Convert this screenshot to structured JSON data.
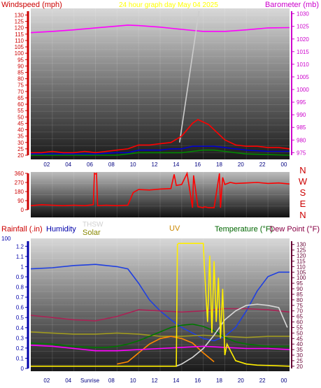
{
  "chart_data": [
    {
      "type": "line",
      "title": "24 hour graph day   May 04 2025",
      "title_color": "#ffff00",
      "left_axis_label": "Windspeed (mph)",
      "left_axis_color": "#cc0000",
      "right_axis_label": "Barometer (mb)",
      "right_axis_color": "#cc00cc",
      "x_ticks": [
        "02",
        "04",
        "06",
        "08",
        "10",
        "12",
        "14",
        "16",
        "18",
        "20",
        "22",
        "00"
      ],
      "x_range": [
        0,
        24
      ],
      "left_ticks": [
        20,
        25,
        30,
        35,
        40,
        45,
        50,
        55,
        60,
        65,
        70,
        75,
        80,
        85,
        90,
        95,
        100,
        105,
        110,
        115,
        120,
        125,
        130
      ],
      "left_ylim": [
        20,
        133
      ],
      "right_ticks": [
        975,
        980,
        985,
        990,
        995,
        1000,
        1005,
        1010,
        1015,
        1020,
        1025,
        1030
      ],
      "right_ylim": [
        974,
        1031
      ],
      "series": [
        {
          "axis": "right",
          "color": "#ff00ff",
          "x": [
            0,
            2,
            4,
            6,
            8,
            9,
            10,
            12,
            14,
            15,
            16,
            18,
            20,
            22,
            24
          ],
          "y": [
            1022.5,
            1023,
            1023.6,
            1024.4,
            1025.1,
            1025.5,
            1025.3,
            1024.7,
            1023.8,
            1023.4,
            1023,
            1023,
            1023.6,
            1024.4,
            1024.5
          ]
        },
        {
          "axis": "left",
          "color": "#cccccc",
          "x": [
            13.8,
            15.6
          ],
          "y": [
            30,
            134
          ]
        },
        {
          "axis": "left",
          "color": "#ff0000",
          "x": [
            0,
            1,
            2,
            3,
            4,
            5,
            6,
            7,
            8,
            9,
            10,
            11,
            12,
            13,
            14,
            15,
            15.5,
            16,
            16.5,
            17,
            18,
            19,
            20,
            21,
            22,
            23,
            24
          ],
          "y": [
            22,
            22,
            23,
            22,
            22,
            23,
            22,
            23,
            24,
            25,
            28,
            28,
            29,
            30,
            35,
            45,
            48,
            46,
            44,
            40,
            32,
            28,
            27,
            27,
            26,
            26,
            25
          ]
        },
        {
          "axis": "left",
          "color": "#0000cc",
          "x": [
            0,
            2,
            4,
            6,
            8,
            9,
            10,
            12,
            13,
            14,
            15,
            16,
            17,
            18,
            19,
            20,
            22,
            24
          ],
          "y": [
            21,
            21,
            21,
            21,
            22,
            22,
            24,
            24,
            25,
            25,
            27,
            27,
            27,
            26,
            25,
            24,
            23,
            23
          ]
        },
        {
          "axis": "left",
          "color": "#008800",
          "x": [
            0,
            8,
            9,
            10,
            12,
            13,
            14,
            15,
            16,
            17,
            18,
            19,
            20,
            24
          ],
          "y": [
            20,
            20,
            21,
            22,
            22,
            22,
            22,
            23,
            24,
            24,
            23,
            22,
            21,
            20
          ]
        }
      ]
    },
    {
      "type": "line",
      "left_ticks": [
        0,
        90,
        180,
        270,
        360
      ],
      "ylim": [
        0,
        360
      ],
      "right_letters": [
        "N",
        "W",
        "S",
        "E",
        "N"
      ],
      "right_letter_color": "#cc0000",
      "x_range": [
        0,
        24
      ],
      "series": [
        {
          "color": "#ff0000",
          "x": [
            0,
            1,
            2,
            3,
            4,
            5,
            5.8,
            5.9,
            6.0,
            6.1,
            6.2,
            7,
            8,
            9,
            9.5,
            10,
            11,
            12,
            13,
            13.3,
            13.5,
            14,
            14.5,
            15,
            15.1,
            15.5,
            16,
            16.1,
            16.5,
            17,
            17.5,
            17.6,
            17.8,
            18,
            18.5,
            19,
            20,
            21,
            22,
            23,
            24
          ],
          "y": [
            40,
            50,
            45,
            40,
            45,
            40,
            50,
            360,
            355,
            360,
            40,
            45,
            40,
            45,
            170,
            200,
            195,
            205,
            210,
            350,
            240,
            250,
            360,
            20,
            340,
            30,
            20,
            30,
            20,
            20,
            360,
            20,
            320,
            250,
            270,
            260,
            265,
            270,
            260,
            265,
            255
          ]
        }
      ]
    },
    {
      "type": "line",
      "legend": [
        {
          "label": "Rainfall (.in)",
          "color": "#cc0000"
        },
        {
          "label": "Humidity",
          "color": "#0000aa"
        },
        {
          "label": "THSW",
          "color": "#e0e0e0"
        },
        {
          "label": "Solar",
          "color": "#888800"
        },
        {
          "label": "UV",
          "color": "#cc8800"
        },
        {
          "label": "Temperature (°F)",
          "color": "#006600"
        },
        {
          "label": "Dew Point (°F)",
          "color": "#880044"
        }
      ],
      "left_ticks": [
        0,
        0.1,
        0.2,
        0.3,
        0.4,
        0.5,
        0.6,
        0.7,
        0.8,
        0.9,
        1,
        1.1,
        1.2
      ],
      "left_ylim": [
        0,
        1.25
      ],
      "left_range_label": "100",
      "right_ticks": [
        20,
        25,
        30,
        35,
        40,
        45,
        50,
        55,
        60,
        65,
        70,
        75,
        80,
        85,
        90,
        95,
        100,
        105,
        110,
        115,
        120,
        125,
        130
      ],
      "right_ylim": [
        18,
        133
      ],
      "x_ticks": [
        "02",
        "04",
        "Sunrise",
        "08",
        "10",
        "12",
        "14",
        "16",
        "18",
        "20",
        "22",
        "00"
      ],
      "x_range": [
        0,
        24
      ],
      "series": [
        {
          "name": "Humidity",
          "axis": "right",
          "color": "#1f3fe0",
          "x": [
            0,
            2,
            4,
            6,
            7,
            8,
            9,
            10,
            11,
            12,
            13,
            14,
            15,
            16,
            17,
            18,
            19,
            20,
            21,
            22,
            23,
            24
          ],
          "y": [
            108,
            109,
            111,
            112,
            111,
            110,
            108,
            95,
            80,
            70,
            62,
            55,
            50,
            45,
            43,
            47,
            55,
            70,
            88,
            101,
            105,
            105
          ]
        },
        {
          "name": "Dew Point",
          "axis": "right",
          "color": "#aa2255",
          "x": [
            0,
            2,
            4,
            6,
            8,
            10,
            12,
            14,
            16,
            18,
            20,
            22,
            24
          ],
          "y": [
            66,
            64,
            62,
            61,
            65,
            71,
            70,
            69,
            70,
            72,
            72,
            71,
            69
          ]
        },
        {
          "name": "Solar",
          "axis": "right",
          "color": "#a09a20",
          "x": [
            0,
            2,
            4,
            6,
            8,
            10,
            12,
            14,
            16,
            18,
            20,
            22,
            24
          ],
          "y": [
            51,
            50,
            49,
            49,
            50,
            49,
            47,
            47,
            48,
            47,
            46,
            47,
            47
          ]
        },
        {
          "name": "Temperature",
          "axis": "right",
          "color": "#007700",
          "x": [
            0,
            2,
            4,
            6,
            7,
            8,
            9,
            10,
            11,
            12,
            13,
            14,
            15,
            16,
            17,
            18,
            19,
            20,
            21,
            22,
            23,
            24
          ],
          "y": [
            41,
            40,
            38,
            37,
            37,
            38,
            40,
            43,
            47,
            51,
            55,
            57,
            58,
            56,
            52,
            46,
            42,
            40,
            39,
            38,
            38,
            38
          ]
        },
        {
          "name": "UV",
          "axis": "right",
          "color": "#ff8800",
          "x": [
            8,
            9,
            10,
            11,
            12,
            13,
            14,
            15,
            16,
            17
          ],
          "y": [
            22,
            24,
            32,
            40,
            45,
            47,
            45,
            41,
            32,
            24
          ]
        },
        {
          "name": "THSW",
          "axis": "right",
          "color": "#d8d8d8",
          "x": [
            13.5,
            14,
            15,
            16,
            17,
            18,
            19,
            20,
            21,
            22,
            23,
            23.8
          ],
          "y": [
            20,
            22,
            28,
            36,
            48,
            62,
            70,
            75,
            76,
            75,
            73,
            55
          ]
        },
        {
          "name": "Rain",
          "axis": "right",
          "color": "#ff00ff",
          "x": [
            0,
            2,
            4,
            6,
            8,
            10,
            12,
            14,
            16,
            18,
            20,
            22,
            24
          ],
          "y": [
            39,
            38,
            36,
            34,
            34,
            35,
            36,
            37,
            38,
            37,
            36,
            36,
            35
          ]
        },
        {
          "name": "Yellow",
          "axis": "right",
          "color": "#ffee00",
          "x": [
            0,
            13.5,
            13.6,
            13.7,
            16,
            16.1,
            16.4,
            16.6,
            16.8,
            17,
            17.2,
            17.4,
            17.6,
            17.8,
            18,
            18.2,
            19,
            20,
            21,
            24
          ],
          "y": [
            20,
            20,
            130,
            131,
            131,
            110,
            60,
            120,
            50,
            115,
            60,
            100,
            45,
            90,
            30,
            40,
            25,
            22,
            21,
            20
          ]
        }
      ]
    }
  ]
}
